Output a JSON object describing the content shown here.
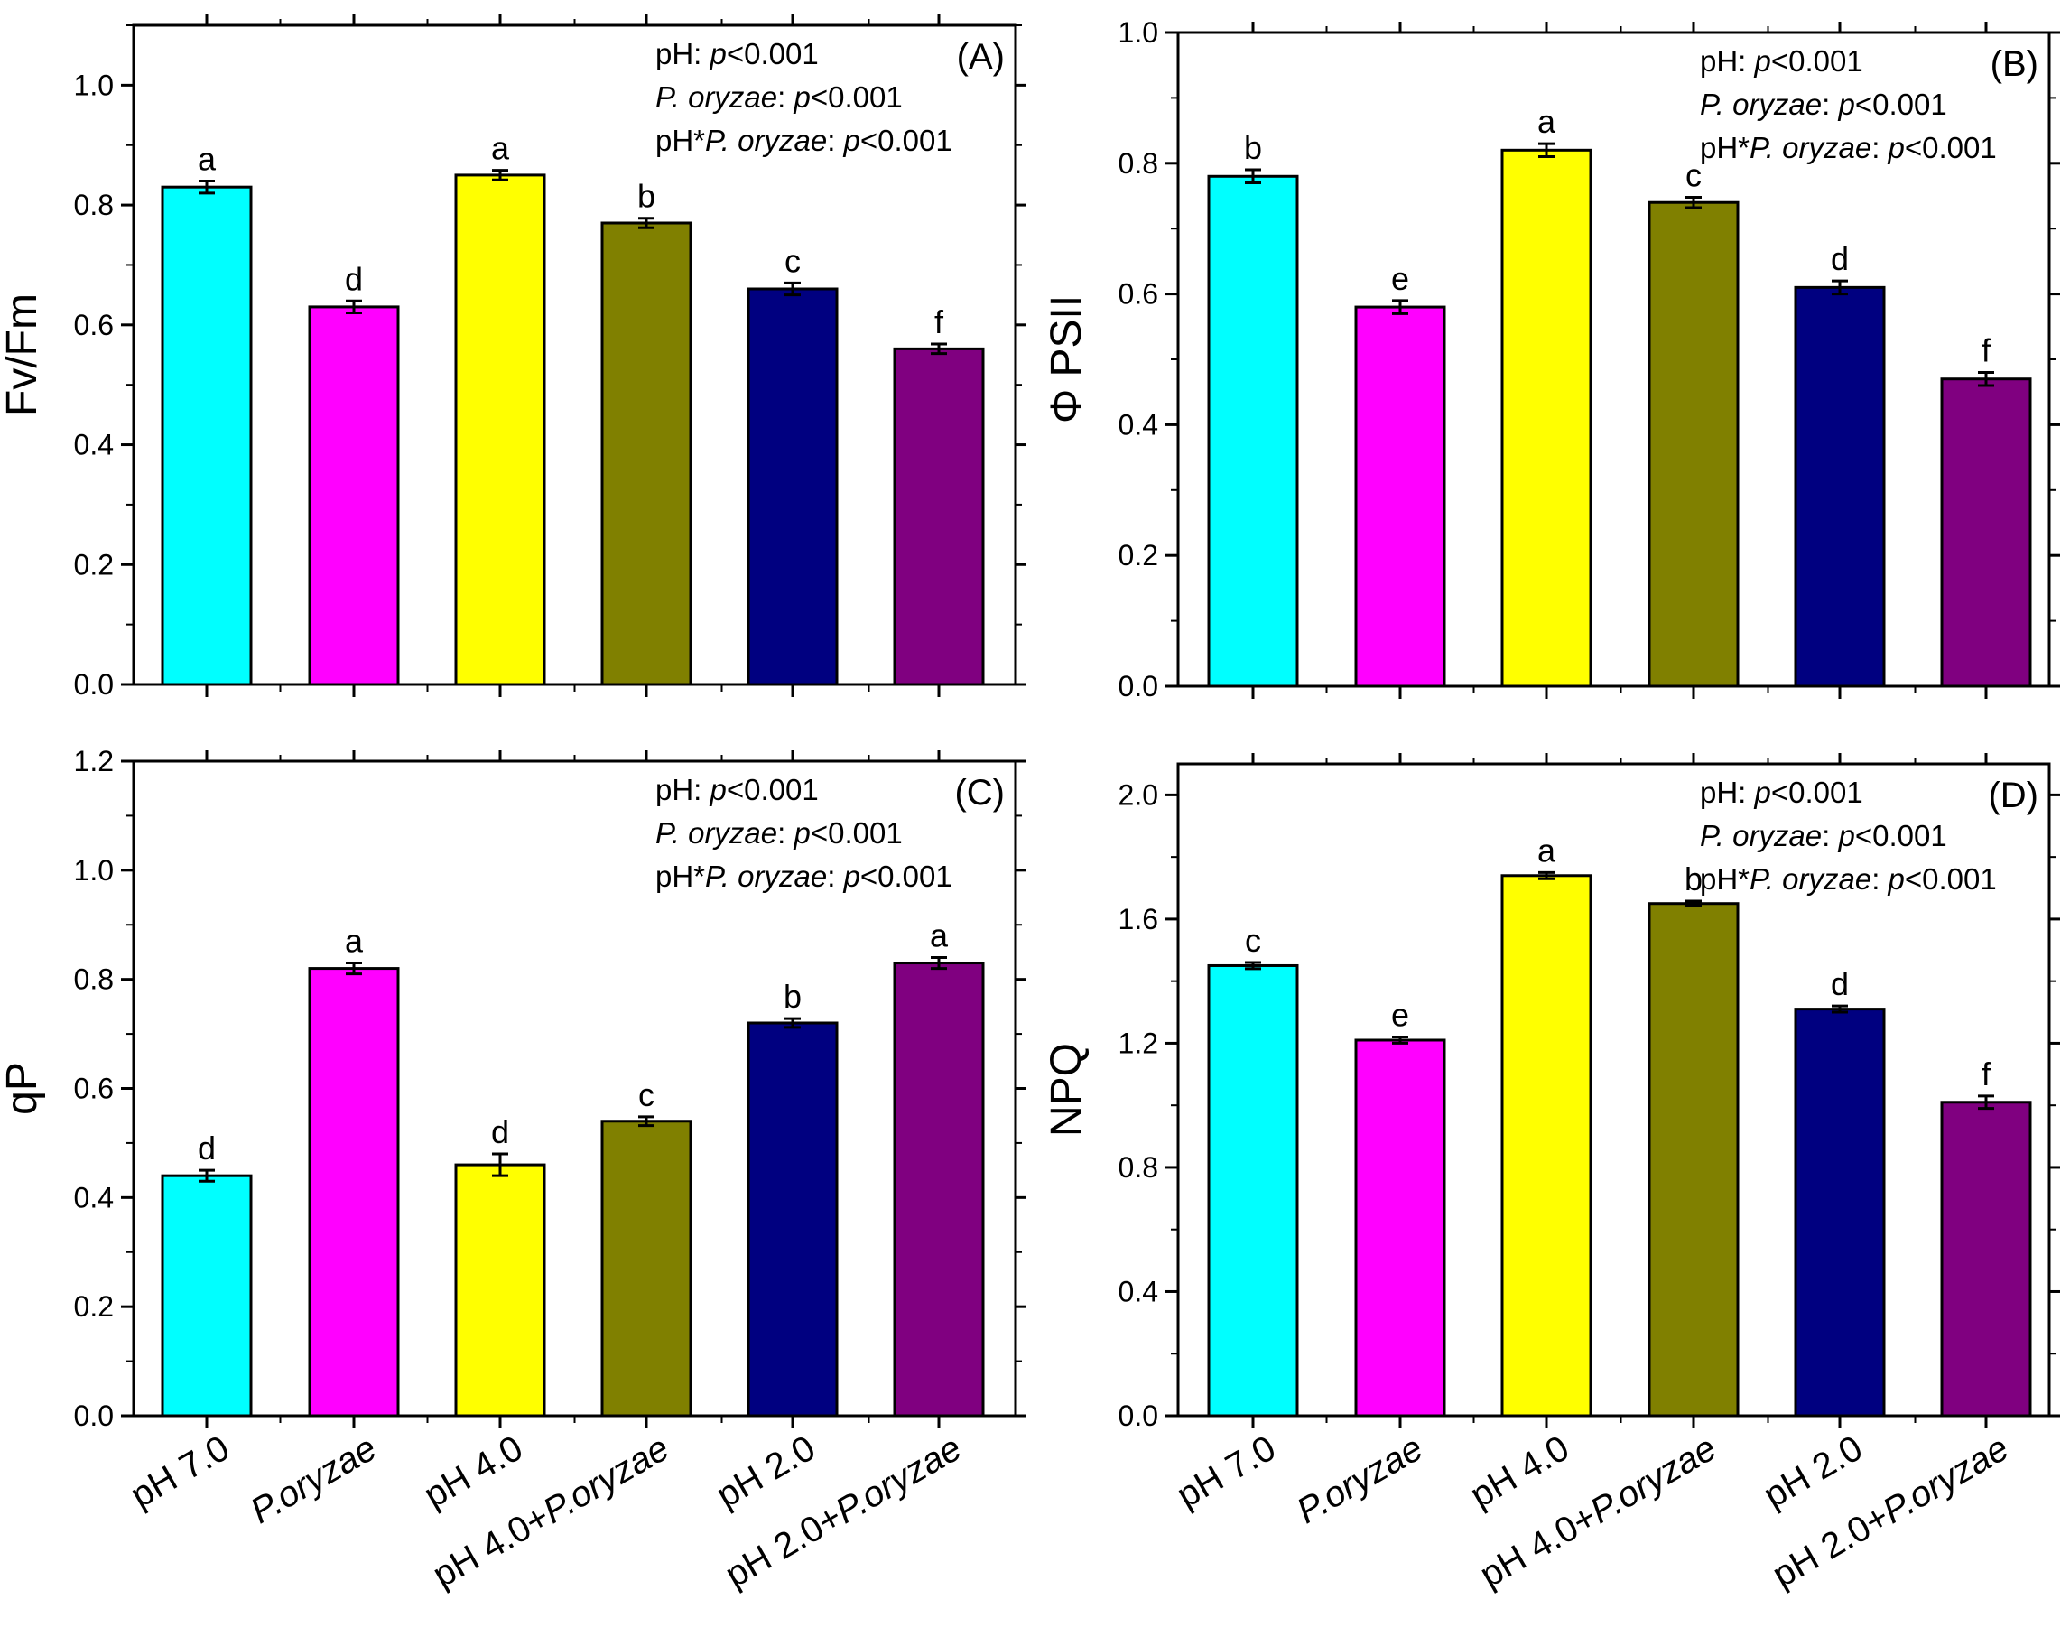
{
  "chart_data": [
    {
      "type": "bar",
      "panel_label": "(A)",
      "ylabel": "Fv/Fm",
      "ylim": [
        0,
        1.1
      ],
      "yticks": [
        0.0,
        0.2,
        0.4,
        0.6,
        0.8,
        1.0
      ],
      "ytick_labels": [
        "0.0",
        "0.2",
        "0.4",
        "0.6",
        "0.8",
        "1.0"
      ],
      "categories": [
        "pH 7.0",
        "P.oryzae",
        "pH 4.0",
        "pH 4.0+P.oryzae",
        "pH 2.0",
        "pH 2.0+P.oryzae"
      ],
      "values": [
        0.83,
        0.63,
        0.85,
        0.77,
        0.66,
        0.56
      ],
      "errors": [
        0.01,
        0.01,
        0.008,
        0.008,
        0.01,
        0.008
      ],
      "letters": [
        "a",
        "d",
        "a",
        "b",
        "c",
        "f"
      ],
      "stats": [
        {
          "factor": "pH: ",
          "pval": "p<0.001"
        },
        {
          "factor": "P. oryzae: ",
          "pval": "p<0.001"
        },
        {
          "factor": "pH*P. oryzae: ",
          "pval": "p<0.001"
        }
      ],
      "show_category_labels": false
    },
    {
      "type": "bar",
      "panel_label": "(B)",
      "ylabel": "Φ PSII",
      "ylim": [
        0,
        1.0
      ],
      "yticks": [
        0.0,
        0.2,
        0.4,
        0.6,
        0.8,
        1.0
      ],
      "ytick_labels": [
        "0.0",
        "0.2",
        "0.4",
        "0.6",
        "0.8",
        "1.0"
      ],
      "categories": [
        "pH 7.0",
        "P.oryzae",
        "pH 4.0",
        "pH 4.0+P.oryzae",
        "pH 2.0",
        "pH 2.0+P.oryzae"
      ],
      "values": [
        0.78,
        0.58,
        0.82,
        0.74,
        0.61,
        0.47
      ],
      "errors": [
        0.01,
        0.01,
        0.01,
        0.008,
        0.01,
        0.01
      ],
      "letters": [
        "b",
        "e",
        "a",
        "c",
        "d",
        "f"
      ],
      "stats": [
        {
          "factor": "pH: ",
          "pval": "p<0.001"
        },
        {
          "factor": "P. oryzae: ",
          "pval": "p<0.001"
        },
        {
          "factor": "pH*P. oryzae: ",
          "pval": "p<0.001"
        }
      ],
      "show_category_labels": false
    },
    {
      "type": "bar",
      "panel_label": "(C)",
      "ylabel": "qP",
      "ylim": [
        0,
        1.2
      ],
      "yticks": [
        0.0,
        0.2,
        0.4,
        0.6,
        0.8,
        1.0,
        1.2
      ],
      "ytick_labels": [
        "0.0",
        "0.2",
        "0.4",
        "0.6",
        "0.8",
        "1.0",
        "1.2"
      ],
      "categories": [
        "pH 7.0",
        "P.oryzae",
        "pH 4.0",
        "pH 4.0+P.oryzae",
        "pH 2.0",
        "pH 2.0+P.oryzae"
      ],
      "values": [
        0.44,
        0.82,
        0.46,
        0.54,
        0.72,
        0.83
      ],
      "errors": [
        0.01,
        0.01,
        0.02,
        0.008,
        0.008,
        0.01
      ],
      "letters": [
        "d",
        "a",
        "d",
        "c",
        "b",
        "a"
      ],
      "stats": [
        {
          "factor": "pH: ",
          "pval": "p<0.001"
        },
        {
          "factor": "P. oryzae: ",
          "pval": "p<0.001"
        },
        {
          "factor": "pH*P. oryzae: ",
          "pval": "p<0.001"
        }
      ],
      "show_category_labels": true
    },
    {
      "type": "bar",
      "panel_label": "(D)",
      "ylabel": "NPQ",
      "ylim": [
        0,
        2.1
      ],
      "yticks": [
        0.0,
        0.4,
        0.8,
        1.2,
        1.6,
        2.0
      ],
      "ytick_labels": [
        "0.0",
        "0.4",
        "0.8",
        "1.2",
        "1.6",
        "2.0"
      ],
      "categories": [
        "pH 7.0",
        "P.oryzae",
        "pH 4.0",
        "pH 4.0+P.oryzae",
        "pH 2.0",
        "pH 2.0+P.oryzae"
      ],
      "values": [
        1.45,
        1.21,
        1.74,
        1.65,
        1.31,
        1.01
      ],
      "errors": [
        0.01,
        0.01,
        0.01,
        0.008,
        0.01,
        0.02
      ],
      "letters": [
        "c",
        "e",
        "a",
        "b",
        "d",
        "f"
      ],
      "stats": [
        {
          "factor": "pH: ",
          "pval": "p<0.001"
        },
        {
          "factor": "P. oryzae: ",
          "pval": "p<0.001"
        },
        {
          "factor": "pH*P. oryzae: ",
          "pval": "p<0.001"
        }
      ],
      "show_category_labels": true
    }
  ],
  "colors": {
    "pH 7.0": "#00FFFF",
    "P.oryzae": "#FF00FF",
    "pH 4.0": "#FFFF00",
    "pH 4.0+P.oryzae": "#808000",
    "pH 2.0": "#000080",
    "pH 2.0+P.oryzae": "#800080"
  }
}
